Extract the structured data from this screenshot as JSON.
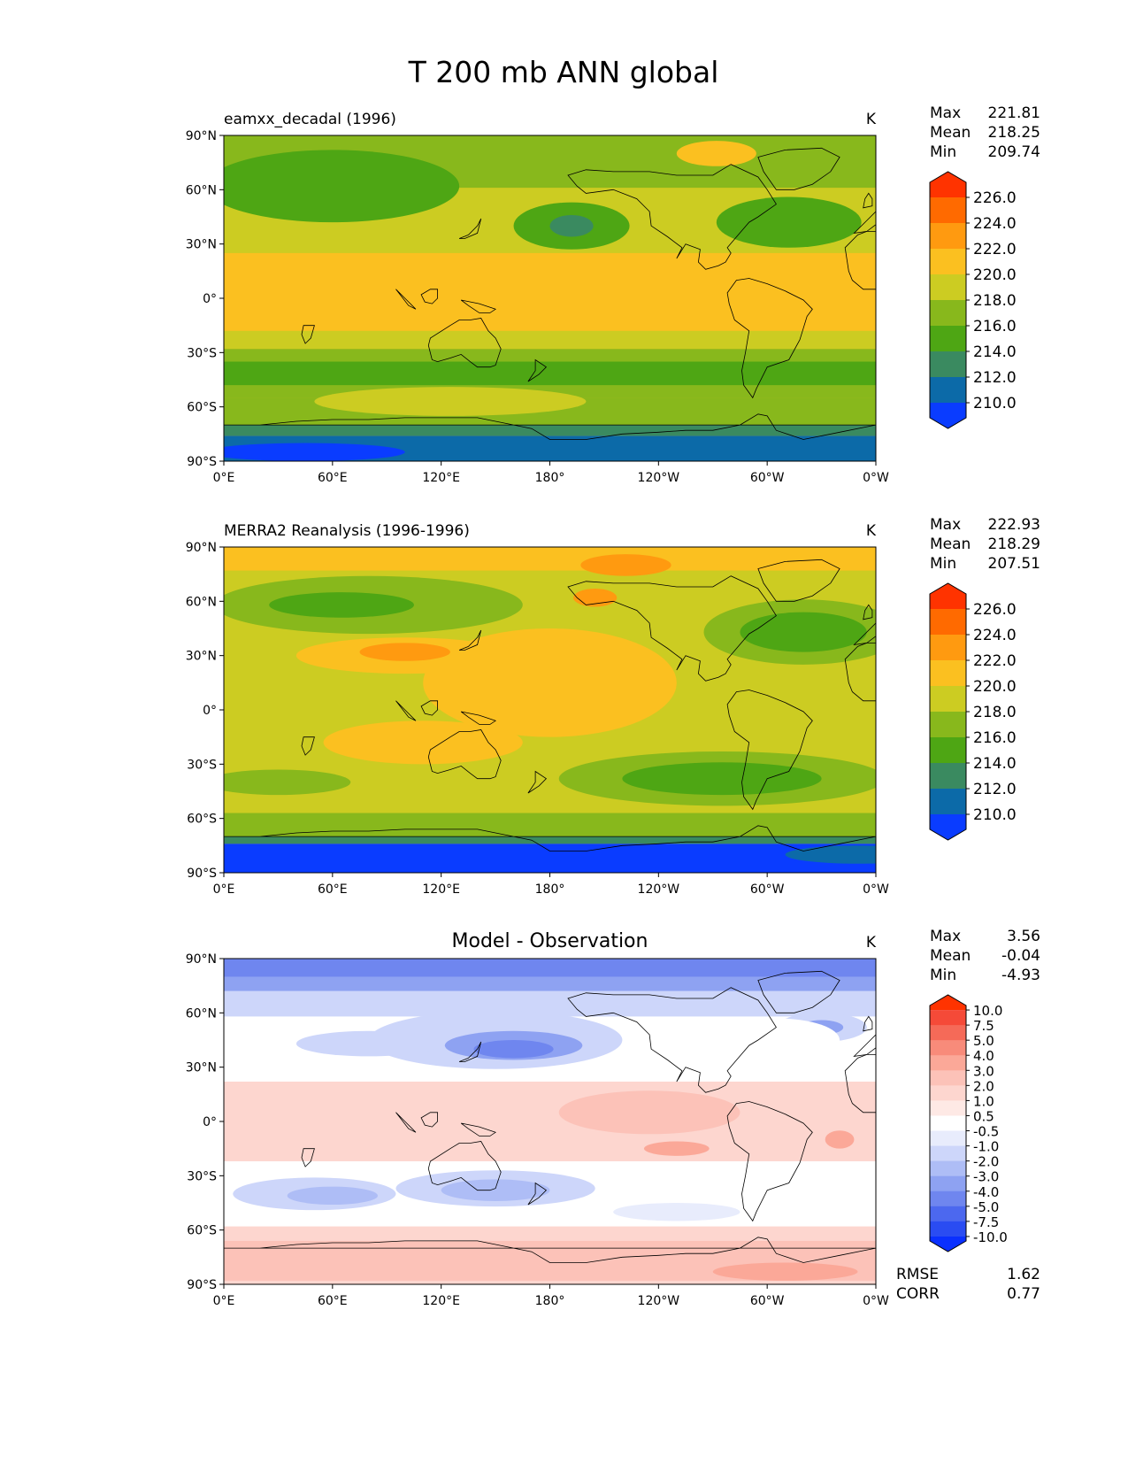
{
  "figure": {
    "title": "T 200 mb ANN global"
  },
  "lat_ticks": [
    "90°N",
    "60°N",
    "30°N",
    "0°",
    "30°S",
    "60°S",
    "90°S"
  ],
  "lon_ticks": [
    "0°E",
    "60°E",
    "120°E",
    "180°",
    "120°W",
    "60°W",
    "0°W"
  ],
  "panels": [
    {
      "title": "eamxx_decadal (1996)",
      "units": "K",
      "stats": {
        "max_label": "Max",
        "max": "221.81",
        "mean_label": "Mean",
        "mean": "218.25",
        "min_label": "Min",
        "min": "209.74"
      },
      "colorbar": {
        "labels": [
          "226.0",
          "224.0",
          "222.0",
          "220.0",
          "218.0",
          "216.0",
          "214.0",
          "212.0",
          "210.0"
        ],
        "colors": [
          "#ff3300",
          "#ff6a00",
          "#ff9a10",
          "#fbc020",
          "#cccc22",
          "#88b81c",
          "#4ea614",
          "#3a8a60",
          "#0c6aa8",
          "#0a3cff"
        ]
      },
      "base": "#fbc020",
      "bands": [
        {
          "color": "#88b81c",
          "lat": [
            61,
            90
          ]
        },
        {
          "color": "#cccc22",
          "lat": [
            25,
            61
          ]
        },
        {
          "color": "#cccc22",
          "lat": [
            -28,
            -18
          ]
        },
        {
          "color": "#88b81c",
          "lat": [
            -55,
            -28
          ]
        },
        {
          "color": "#4ea614",
          "lat": [
            -48,
            -35
          ]
        },
        {
          "color": "#88b81c",
          "lat": [
            -70,
            -55
          ]
        },
        {
          "color": "#3a8a60",
          "lat": [
            -76,
            -70
          ]
        },
        {
          "color": "#0c6aa8",
          "lat": [
            -90,
            -76
          ]
        }
      ],
      "blobs": [
        {
          "color": "#4ea614",
          "lon": 60,
          "lat": 62,
          "rlon": 70,
          "rlat": 20
        },
        {
          "color": "#4ea614",
          "lon": 192,
          "lat": 40,
          "rlon": 32,
          "rlat": 13
        },
        {
          "color": "#3a8a60",
          "lon": 192,
          "lat": 40,
          "rlon": 12,
          "rlat": 6
        },
        {
          "color": "#4ea614",
          "lon": 312,
          "lat": 42,
          "rlon": 40,
          "rlat": 14
        },
        {
          "color": "#cccc22",
          "lon": 125,
          "lat": -57,
          "rlon": 75,
          "rlat": 8
        },
        {
          "color": "#fbc020",
          "lon": 272,
          "lat": 80,
          "rlon": 22,
          "rlat": 7
        },
        {
          "color": "#0a3cff",
          "lon": 45,
          "lat": -85,
          "rlon": 55,
          "rlat": 5
        }
      ]
    },
    {
      "title": "MERRA2 Reanalysis (1996-1996)",
      "units": "K",
      "stats": {
        "max_label": "Max",
        "max": "222.93",
        "mean_label": "Mean",
        "mean": "218.29",
        "min_label": "Min",
        "min": "207.51"
      },
      "colorbar": {
        "labels": [
          "226.0",
          "224.0",
          "222.0",
          "220.0",
          "218.0",
          "216.0",
          "214.0",
          "212.0",
          "210.0"
        ],
        "colors": [
          "#ff3300",
          "#ff6a00",
          "#ff9a10",
          "#fbc020",
          "#cccc22",
          "#88b81c",
          "#4ea614",
          "#3a8a60",
          "#0c6aa8",
          "#0a3cff"
        ]
      },
      "base": "#cccc22",
      "bands": [
        {
          "color": "#fbc020",
          "lat": [
            77,
            90
          ]
        },
        {
          "color": "#88b81c",
          "lat": [
            -70,
            -57
          ]
        },
        {
          "color": "#3a8a60",
          "lat": [
            -74,
            -70
          ]
        },
        {
          "color": "#0a3cff",
          "lat": [
            -90,
            -74
          ]
        }
      ],
      "blobs": [
        {
          "color": "#88b81c",
          "lon": 80,
          "lat": 58,
          "rlon": 85,
          "rlat": 16
        },
        {
          "color": "#4ea614",
          "lon": 65,
          "lat": 58,
          "rlon": 40,
          "rlat": 7
        },
        {
          "color": "#fbc020",
          "lon": 180,
          "lat": 15,
          "rlon": 70,
          "rlat": 30
        },
        {
          "color": "#fbc020",
          "lon": 100,
          "lat": 30,
          "rlon": 60,
          "rlat": 10
        },
        {
          "color": "#ff9a10",
          "lon": 100,
          "lat": 32,
          "rlon": 25,
          "rlat": 5
        },
        {
          "color": "#fbc020",
          "lon": 110,
          "lat": -18,
          "rlon": 55,
          "rlat": 12
        },
        {
          "color": "#ff9a10",
          "lon": 222,
          "lat": 80,
          "rlon": 25,
          "rlat": 6
        },
        {
          "color": "#ff9a10",
          "lon": 205,
          "lat": 62,
          "rlon": 12,
          "rlat": 5
        },
        {
          "color": "#88b81c",
          "lon": 320,
          "lat": 43,
          "rlon": 55,
          "rlat": 18
        },
        {
          "color": "#4ea614",
          "lon": 320,
          "lat": 43,
          "rlon": 35,
          "rlat": 11
        },
        {
          "color": "#88b81c",
          "lon": 275,
          "lat": -38,
          "rlon": 90,
          "rlat": 15
        },
        {
          "color": "#4ea614",
          "lon": 275,
          "lat": -38,
          "rlon": 55,
          "rlat": 9
        },
        {
          "color": "#88b81c",
          "lon": 30,
          "lat": -40,
          "rlon": 40,
          "rlat": 7
        },
        {
          "color": "#0c6aa8",
          "lon": 350,
          "lat": -80,
          "rlon": 40,
          "rlat": 5
        }
      ]
    },
    {
      "title": "Model - Observation",
      "units": "K",
      "stats": {
        "max_label": "Max",
        "max": "3.56",
        "mean_label": "Mean",
        "mean": "-0.04",
        "min_label": "Min",
        "min": "-4.93"
      },
      "colorbar": {
        "labels": [
          "10.0",
          "7.5",
          "5.0",
          "4.0",
          "3.0",
          "2.0",
          "1.0",
          "0.5",
          "-0.5",
          "-1.0",
          "-2.0",
          "-3.0",
          "-4.0",
          "-5.0",
          "-7.5",
          "-10.0"
        ],
        "colors": [
          "#ff3300",
          "#f54a38",
          "#f56a58",
          "#f88b7a",
          "#fba898",
          "#fcc2b8",
          "#fdd6cf",
          "#fee9e5",
          "#ffffff",
          "#e8ecfc",
          "#cdd6fa",
          "#aebdf6",
          "#8ea2f2",
          "#6f86ef",
          "#4c68ef",
          "#2a4cf2",
          "#0a30ff"
        ]
      },
      "stats_extra": {
        "rmse_label": "RMSE",
        "rmse": "1.62",
        "corr_label": "CORR",
        "corr": "0.77"
      },
      "base": "#ffffff",
      "bands": [
        {
          "color": "#8ea2f2",
          "lat": [
            72,
            90
          ]
        },
        {
          "color": "#6f86ef",
          "lat": [
            80,
            90
          ]
        },
        {
          "color": "#cdd6fa",
          "lat": [
            58,
            72
          ]
        },
        {
          "color": "#fdd6cf",
          "lat": [
            -22,
            22
          ]
        },
        {
          "color": "#fdd6cf",
          "lat": [
            -90,
            -58
          ]
        },
        {
          "color": "#fcc2b8",
          "lat": [
            -88,
            -66
          ]
        }
      ],
      "blobs": [
        {
          "color": "#cdd6fa",
          "lon": 150,
          "lat": 45,
          "rlon": 70,
          "rlat": 16
        },
        {
          "color": "#8ea2f2",
          "lon": 160,
          "lat": 42,
          "rlon": 38,
          "rlat": 8
        },
        {
          "color": "#6f86ef",
          "lon": 160,
          "lat": 40,
          "rlon": 22,
          "rlat": 5
        },
        {
          "color": "#cdd6fa",
          "lon": 80,
          "lat": 43,
          "rlon": 40,
          "rlat": 7
        },
        {
          "color": "#cdd6fa",
          "lon": 330,
          "lat": 52,
          "rlon": 25,
          "rlat": 8
        },
        {
          "color": "#8ea2f2",
          "lon": 330,
          "lat": 52,
          "rlon": 12,
          "rlat": 4
        },
        {
          "color": "#ffffff",
          "lon": 305,
          "lat": 45,
          "rlon": 35,
          "rlat": 12
        },
        {
          "color": "#fcc2b8",
          "lon": 235,
          "lat": 5,
          "rlon": 50,
          "rlat": 12
        },
        {
          "color": "#fba898",
          "lon": 250,
          "lat": -15,
          "rlon": 18,
          "rlat": 4
        },
        {
          "color": "#fba898",
          "lon": 340,
          "lat": -10,
          "rlon": 8,
          "rlat": 5
        },
        {
          "color": "#cdd6fa",
          "lon": 50,
          "lat": -40,
          "rlon": 45,
          "rlat": 9
        },
        {
          "color": "#aebdf6",
          "lon": 60,
          "lat": -41,
          "rlon": 25,
          "rlat": 5
        },
        {
          "color": "#cdd6fa",
          "lon": 150,
          "lat": -37,
          "rlon": 55,
          "rlat": 10
        },
        {
          "color": "#aebdf6",
          "lon": 150,
          "lat": -38,
          "rlon": 30,
          "rlat": 6
        },
        {
          "color": "#e8ecfc",
          "lon": 250,
          "lat": -50,
          "rlon": 35,
          "rlat": 5
        },
        {
          "color": "#fba898",
          "lon": 310,
          "lat": -83,
          "rlon": 40,
          "rlat": 5
        }
      ]
    }
  ]
}
